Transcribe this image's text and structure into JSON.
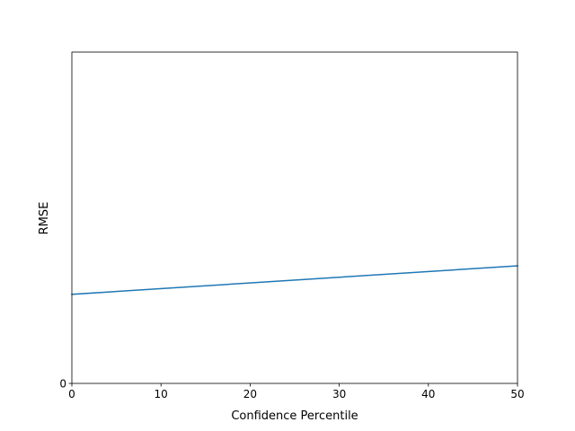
{
  "chart_data": {
    "type": "line",
    "title": "",
    "xlabel": "Confidence Percentile",
    "ylabel": "RMSE",
    "xlim": [
      0,
      50
    ],
    "ylim": [
      0,
      3.72
    ],
    "xticks": [
      0,
      10,
      20,
      30,
      40,
      50
    ],
    "yticks": [
      0
    ],
    "grid": false,
    "series": [
      {
        "x": [
          0,
          50
        ],
        "y": [
          1.0,
          1.32
        ],
        "color": "#1f77b4"
      }
    ]
  }
}
